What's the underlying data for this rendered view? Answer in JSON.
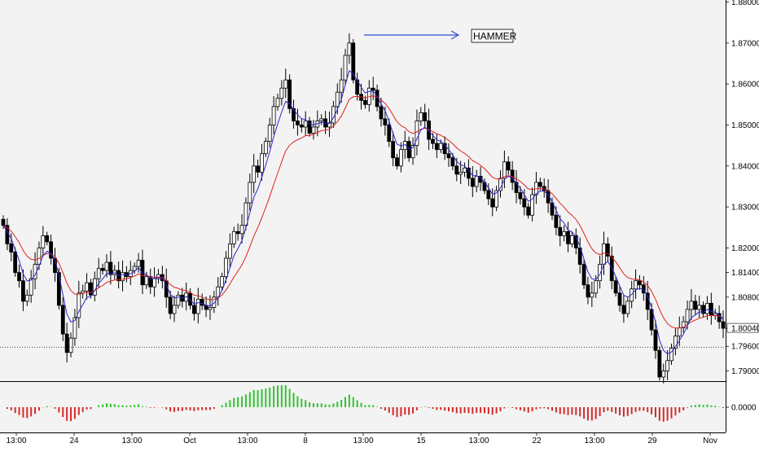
{
  "chart_data": [
    {
      "type": "candlestick",
      "title": "",
      "y_axis_side": "right",
      "ylim": [
        1.7875,
        1.8805
      ],
      "y_ticks": [
        "1.88000",
        "1.87000",
        "1.86000",
        "1.85000",
        "1.84000",
        "1.83000",
        "1.82000",
        "1.81400",
        "1.80800",
        "1.80040",
        "1.79600",
        "1.79000"
      ],
      "current_price_label": "1.80040",
      "horizontal_line_value": 1.7958,
      "x_tick_labels": [
        "13:00",
        "24",
        "13:00",
        "Oct",
        "13:00",
        "8",
        "13:00",
        "15",
        "13:00",
        "22",
        "13:00",
        "29",
        "Nov"
      ],
      "annotation": {
        "text": "HAMMER",
        "target": "high of the bar near the 13:00 label after 8",
        "arrow_color": "#2e4fd8"
      },
      "series": [
        {
          "name": "",
          "kind": "moving_average",
          "color": "#2a2ad0"
        },
        {
          "name": "",
          "kind": "moving_average",
          "color": "#e02020"
        }
      ],
      "closes": [
        1.8255,
        1.821,
        1.819,
        1.814,
        1.812,
        1.807,
        1.8085,
        1.8125,
        1.816,
        1.82,
        1.823,
        1.8215,
        1.8175,
        1.814,
        1.806,
        1.799,
        1.7945,
        1.798,
        1.803,
        1.809,
        1.8095,
        1.8115,
        1.8085,
        1.8125,
        1.815,
        1.8145,
        1.8165,
        1.8135,
        1.8145,
        1.812,
        1.814,
        1.813,
        1.8145,
        1.8155,
        1.817,
        1.811,
        1.813,
        1.8105,
        1.8125,
        1.8135,
        1.812,
        1.808,
        1.804,
        1.806,
        1.8085,
        1.807,
        1.809,
        1.806,
        1.804,
        1.8075,
        1.806,
        1.805,
        1.8055,
        1.808,
        1.8105,
        1.813,
        1.8175,
        1.821,
        1.824,
        1.8235,
        1.8255,
        1.831,
        1.836,
        1.84,
        1.8385,
        1.843,
        1.846,
        1.85,
        1.8545,
        1.8565,
        1.859,
        1.861,
        1.854,
        1.851,
        1.85,
        1.8495,
        1.851,
        1.848,
        1.8495,
        1.851,
        1.8515,
        1.8495,
        1.8505,
        1.8545,
        1.858,
        1.861,
        1.867,
        1.87,
        1.861,
        1.8575,
        1.856,
        1.855,
        1.859,
        1.8585,
        1.8545,
        1.8515,
        1.85,
        1.846,
        1.842,
        1.84,
        1.844,
        1.846,
        1.842,
        1.845,
        1.851,
        1.853,
        1.851,
        1.8465,
        1.8455,
        1.844,
        1.8455,
        1.843,
        1.842,
        1.84,
        1.838,
        1.8385,
        1.8395,
        1.837,
        1.835,
        1.8375,
        1.836,
        1.834,
        1.832,
        1.83,
        1.834,
        1.837,
        1.841,
        1.839,
        1.836,
        1.8335,
        1.832,
        1.83,
        1.828,
        1.833,
        1.836,
        1.835,
        1.834,
        1.831,
        1.828,
        1.825,
        1.823,
        1.824,
        1.821,
        1.823,
        1.82,
        1.816,
        1.811,
        1.808,
        1.809,
        1.812,
        1.816,
        1.821,
        1.818,
        1.812,
        1.809,
        1.806,
        1.804,
        1.807,
        1.81,
        1.812,
        1.811,
        1.809,
        1.805,
        1.8,
        1.795,
        1.7885,
        1.79,
        1.7925,
        1.7955,
        1.7985,
        1.8005,
        1.802,
        1.805,
        1.807,
        1.805,
        1.806,
        1.804,
        1.8065,
        1.8035,
        1.804,
        1.802,
        1.8004
      ]
    },
    {
      "type": "oscillator_histogram",
      "zero_label": "0.0000",
      "positive_color": "#2fc42f",
      "negative_color": "#d42a2a"
    }
  ]
}
